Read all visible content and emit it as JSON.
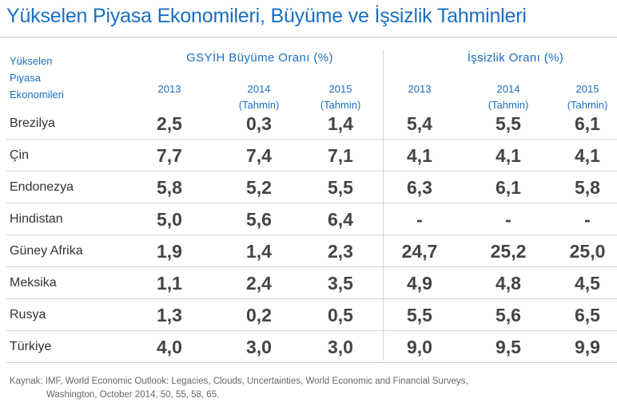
{
  "title": "Yükselen Piyasa Ekonomileri, Büyüme ve İşsizlik Tahminleri",
  "header": {
    "country_col": [
      "Yükselen",
      "Piyasa",
      "Ekonomileri"
    ],
    "group1": "GSYİH Büyüme Oranı (%)",
    "group2": "İşsizlik Oranı (%)",
    "years": [
      {
        "year": "2013",
        "note": ""
      },
      {
        "year": "2014",
        "note": "(Tahmin)"
      },
      {
        "year": "2015",
        "note": "(Tahmin)"
      },
      {
        "year": "2013",
        "note": ""
      },
      {
        "year": "2014",
        "note": "(Tahmin)"
      },
      {
        "year": "2015",
        "note": "(Tahmin)"
      }
    ]
  },
  "rows": [
    {
      "name": "Brezilya",
      "vals": [
        "2,5",
        "0,3",
        "1,4",
        "5,4",
        "5,5",
        "6,1"
      ]
    },
    {
      "name": "Çin",
      "vals": [
        "7,7",
        "7,4",
        "7,1",
        "4,1",
        "4,1",
        "4,1"
      ]
    },
    {
      "name": "Endonezya",
      "vals": [
        "5,8",
        "5,2",
        "5,5",
        "6,3",
        "6,1",
        "5,8"
      ]
    },
    {
      "name": "Hindistan",
      "vals": [
        "5,0",
        "5,6",
        "6,4",
        "-",
        "-",
        "-"
      ]
    },
    {
      "name": "Güney Afrika",
      "vals": [
        "1,9",
        "1,4",
        "2,3",
        "24,7",
        "25,2",
        "25,0"
      ]
    },
    {
      "name": "Meksika",
      "vals": [
        "1,1",
        "2,4",
        "3,5",
        "4,9",
        "4,8",
        "4,5"
      ]
    },
    {
      "name": "Rusya",
      "vals": [
        "1,3",
        "0,2",
        "0,5",
        "5,5",
        "5,6",
        "6,5"
      ]
    },
    {
      "name": "Türkiye",
      "vals": [
        "4,0",
        "3,0",
        "3,0",
        "9,0",
        "9,5",
        "9,9"
      ]
    }
  ],
  "source": {
    "line1": "Kaynak: IMF, World Economic Outlook: Legacies, Clouds, Uncertainties, World Economic and Financial Surveys,",
    "line2": "Washington, October 2014, 50, 55, 58, 65."
  },
  "chart_data": {
    "type": "table",
    "title": "Yükselen Piyasa Ekonomileri, Büyüme ve İşsizlik Tahminleri",
    "columns": [
      "GSYİH Büyüme Oranı (%) 2013",
      "GSYİH Büyüme Oranı (%) 2014 (Tahmin)",
      "GSYİH Büyüme Oranı (%) 2015 (Tahmin)",
      "İşsizlik Oranı (%) 2013",
      "İşsizlik Oranı (%) 2014 (Tahmin)",
      "İşsizlik Oranı (%) 2015 (Tahmin)"
    ],
    "categories": [
      "Brezilya",
      "Çin",
      "Endonezya",
      "Hindistan",
      "Güney Afrika",
      "Meksika",
      "Rusya",
      "Türkiye"
    ],
    "series": [
      {
        "name": "GSYİH Büyüme Oranı (%) 2013",
        "values": [
          2.5,
          7.7,
          5.8,
          5.0,
          1.9,
          1.1,
          1.3,
          4.0
        ]
      },
      {
        "name": "GSYİH Büyüme Oranı (%) 2014 (Tahmin)",
        "values": [
          0.3,
          7.4,
          5.2,
          5.6,
          1.4,
          2.4,
          0.2,
          3.0
        ]
      },
      {
        "name": "GSYİH Büyüme Oranı (%) 2015 (Tahmin)",
        "values": [
          1.4,
          7.1,
          5.5,
          6.4,
          2.3,
          3.5,
          0.5,
          3.0
        ]
      },
      {
        "name": "İşsizlik Oranı (%) 2013",
        "values": [
          5.4,
          4.1,
          6.3,
          null,
          24.7,
          4.9,
          5.5,
          9.0
        ]
      },
      {
        "name": "İşsizlik Oranı (%) 2014 (Tahmin)",
        "values": [
          5.5,
          4.1,
          6.1,
          null,
          25.2,
          4.8,
          5.6,
          9.5
        ]
      },
      {
        "name": "İşsizlik Oranı (%) 2015 (Tahmin)",
        "values": [
          6.1,
          4.1,
          5.8,
          null,
          25.0,
          4.5,
          6.5,
          9.9
        ]
      }
    ]
  },
  "colors": {
    "accent": "#1a6fc0",
    "value_text": "#444444",
    "rule": "#d6d6d6"
  }
}
